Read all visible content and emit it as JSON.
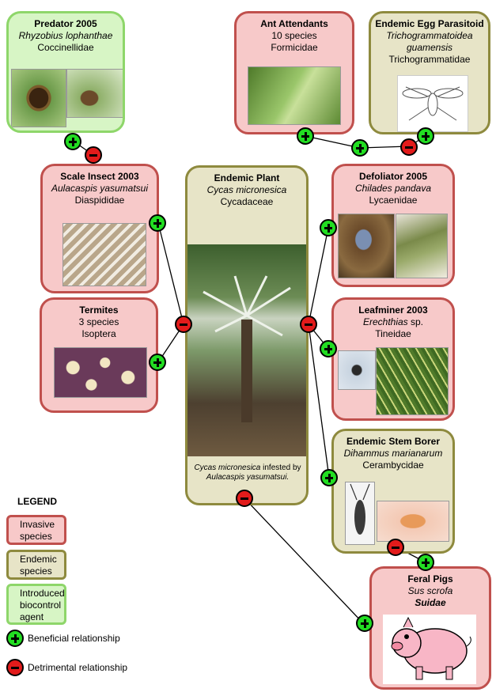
{
  "nodes": {
    "predator": {
      "title": "Predator 2005",
      "species": "Rhyzobius lophanthae",
      "family": "Coccinellidae"
    },
    "ant": {
      "title": "Ant Attendants",
      "species": "10 species",
      "family": "Formicidae"
    },
    "parasitoid": {
      "title": "Endemic Egg Parasitoid",
      "species_line1": "Trichogrammatoidea",
      "species_line2": "guamensis",
      "family": "Trichogrammatidae"
    },
    "scale": {
      "title": "Scale Insect 2003",
      "species": "Aulacaspis yasumatsui",
      "family": "Diaspididae"
    },
    "plant": {
      "title": "Endemic Plant",
      "species": "Cycas micronesica",
      "family": "Cycadaceae",
      "caption_species": "Cycas micronesica",
      "caption_text": " infested by",
      "caption_species2": "Aulacaspis yasumatsui."
    },
    "defoliator": {
      "title": "Defoliator 2005",
      "species": "Chilades pandava",
      "family": "Lycaenidae"
    },
    "termites": {
      "title": "Termites",
      "species": "3 species",
      "family": "Isoptera"
    },
    "leafminer": {
      "title": "Leafminer 2003",
      "species": "Erechthias",
      "species_suffix": " sp.",
      "family": "Tineidae"
    },
    "borer": {
      "title": "Endemic Stem Borer",
      "species": "Dihammus marianarum",
      "family": "Cerambycidae"
    },
    "pigs": {
      "title": "Feral Pigs",
      "species": "Sus scrofa",
      "family": "Suidae"
    }
  },
  "legend": {
    "title": "LEGEND",
    "invasive_line1": "Invasive",
    "invasive_line2": "species",
    "endemic_line1": "Endemic",
    "endemic_line2": "species",
    "introduced_line1": "Introduced",
    "introduced_line2": "biocontrol",
    "introduced_line3": "agent",
    "beneficial": "Beneficial relationship",
    "detrimental": "Detrimental relationship"
  },
  "colors": {
    "invasive_fill": "#f7c9c9",
    "invasive_border": "#c0504d",
    "endemic_fill": "#e7e4c7",
    "endemic_border": "#8e8a3e",
    "introduced_fill": "#d7f5c5",
    "introduced_border": "#8ed66a",
    "beneficial": "#22dd22",
    "detrimental": "#e21b1b"
  },
  "icons": [
    "plus-icon",
    "minus-icon"
  ]
}
